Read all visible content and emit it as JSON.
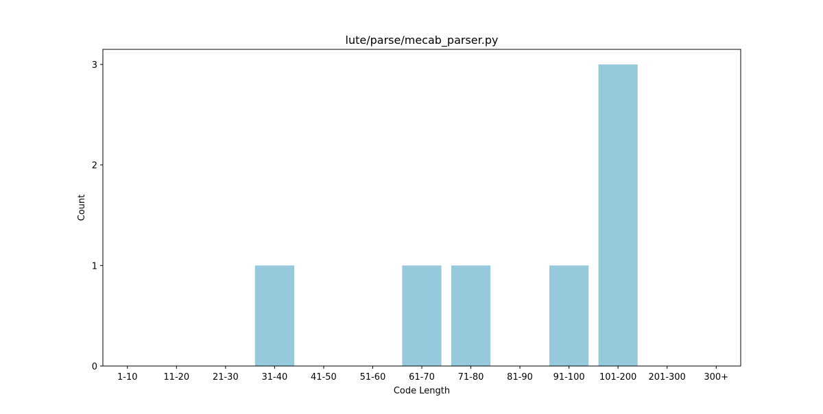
{
  "chart_data": {
    "type": "bar",
    "title": "lute/parse/mecab_parser.py",
    "xlabel": "Code Length",
    "ylabel": "Count",
    "categories": [
      "1-10",
      "11-20",
      "21-30",
      "31-40",
      "41-50",
      "51-60",
      "61-70",
      "71-80",
      "81-90",
      "91-100",
      "101-200",
      "201-300",
      "300+"
    ],
    "values": [
      0,
      0,
      0,
      1,
      0,
      0,
      1,
      1,
      0,
      1,
      3,
      0,
      0
    ],
    "ylim": [
      0,
      3.15
    ],
    "yticks": [
      0,
      1,
      2,
      3
    ],
    "bar_color": "#96c9dc",
    "grid": false,
    "legend": false
  }
}
